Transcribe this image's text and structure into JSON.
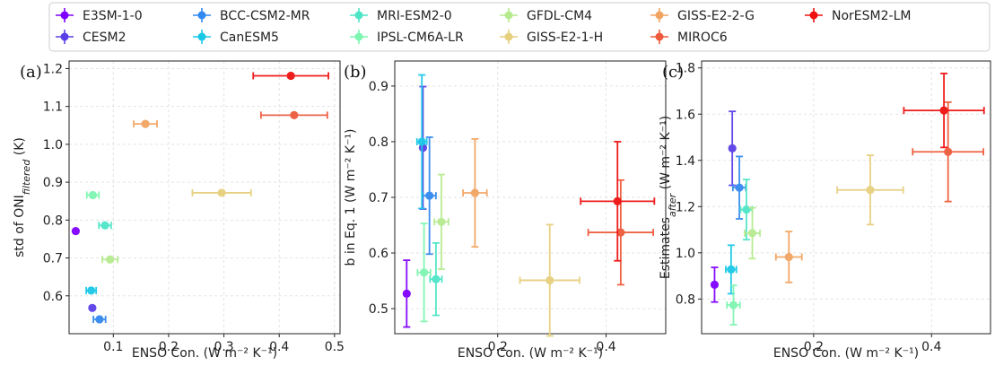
{
  "legend": {
    "entries": [
      {
        "label": "E3SM-1-0",
        "color": "#7f00ff"
      },
      {
        "label": "CESM2",
        "color": "#5a3fe6"
      },
      {
        "label": "BCC-CSM2-MR",
        "color": "#3289f0"
      },
      {
        "label": "CanESM5",
        "color": "#19c8e6"
      },
      {
        "label": "MRI-ESM2-0",
        "color": "#4ee5c7"
      },
      {
        "label": "IPSL-CM6A-LR",
        "color": "#7ef5b1"
      },
      {
        "label": "GFDL-CM4",
        "color": "#b5ea8f"
      },
      {
        "label": "GISS-E2-1-H",
        "color": "#e6cf7d"
      },
      {
        "label": "GISS-E2-2-G",
        "color": "#f2a462"
      },
      {
        "label": "MIROC6",
        "color": "#ee5a3b"
      },
      {
        "label": "NorESM2-LM",
        "color": "#ef1010"
      }
    ]
  },
  "chart_data": [
    {
      "type": "scatter",
      "panel_label": "(a)",
      "xlabel": "ENSO Con. (W m⁻² K⁻¹)",
      "ylabel": "std of ONI_filtered (K)",
      "xlim": [
        0.02,
        0.51
      ],
      "ylim": [
        0.5,
        1.22
      ],
      "xticks": [
        0.1,
        0.2,
        0.3,
        0.4,
        0.5
      ],
      "xtick_labels": [
        "0.1",
        "0.2",
        "0.3",
        "0.4",
        "0.5"
      ],
      "yticks": [
        0.6,
        0.7,
        0.8,
        0.9,
        1.0,
        1.1,
        1.2
      ],
      "ytick_labels": [
        "0.6",
        "0.7",
        "0.8",
        "0.9",
        "1.0",
        "1.1",
        "1.2"
      ],
      "grid": true,
      "points": [
        {
          "model": "E3SM-1-0",
          "x": 0.032,
          "y": 0.771,
          "xerr": 0,
          "yerr": 0
        },
        {
          "model": "CESM2",
          "x": 0.062,
          "y": 0.568,
          "xerr": 0,
          "yerr": 0
        },
        {
          "model": "BCC-CSM2-MR",
          "x": 0.075,
          "y": 0.538,
          "xerr": 0.011,
          "yerr": 0
        },
        {
          "model": "CanESM5",
          "x": 0.06,
          "y": 0.614,
          "xerr": 0.009,
          "yerr": 0
        },
        {
          "model": "MRI-ESM2-0",
          "x": 0.085,
          "y": 0.786,
          "xerr": 0.011,
          "yerr": 0
        },
        {
          "model": "IPSL-CM6A-LR",
          "x": 0.063,
          "y": 0.866,
          "xerr": 0.011,
          "yerr": 0
        },
        {
          "model": "GFDL-CM4",
          "x": 0.094,
          "y": 0.696,
          "xerr": 0.014,
          "yerr": 0
        },
        {
          "model": "GISS-E2-1-H",
          "x": 0.296,
          "y": 0.872,
          "xerr": 0.053,
          "yerr": 0
        },
        {
          "model": "GISS-E2-2-G",
          "x": 0.158,
          "y": 1.054,
          "xerr": 0.021,
          "yerr": 0
        },
        {
          "model": "MIROC6",
          "x": 0.427,
          "y": 1.077,
          "xerr": 0.06,
          "yerr": 0
        },
        {
          "model": "NorESM2-LM",
          "x": 0.421,
          "y": 1.181,
          "xerr": 0.068,
          "yerr": 0
        }
      ]
    },
    {
      "type": "scatter",
      "panel_label": "(b)",
      "xlabel": "ENSO Con. (W m⁻² K⁻¹)",
      "ylabel": "b in Eq. 1 (W m⁻² K⁻¹)",
      "xlim": [
        0.01,
        0.51
      ],
      "ylim": [
        0.455,
        0.945
      ],
      "xticks": [
        0.2,
        0.4
      ],
      "xtick_labels": [
        "0.2",
        "0.4"
      ],
      "yticks": [
        0.5,
        0.6,
        0.7,
        0.8,
        0.9
      ],
      "ytick_labels": [
        "0.5",
        "0.6",
        "0.7",
        "0.8",
        "0.9"
      ],
      "grid": true,
      "points": [
        {
          "model": "E3SM-1-0",
          "x": 0.032,
          "y": 0.527,
          "xerr": 0,
          "yerr": 0.06
        },
        {
          "model": "CESM2",
          "x": 0.062,
          "y": 0.789,
          "xerr": 0,
          "yerr": 0.11
        },
        {
          "model": "BCC-CSM2-MR",
          "x": 0.074,
          "y": 0.703,
          "xerr": 0.012,
          "yerr": 0.105
        },
        {
          "model": "CanESM5",
          "x": 0.06,
          "y": 0.8,
          "xerr": 0.009,
          "yerr": 0.12
        },
        {
          "model": "MRI-ESM2-0",
          "x": 0.086,
          "y": 0.553,
          "xerr": 0.011,
          "yerr": 0.065
        },
        {
          "model": "IPSL-CM6A-LR",
          "x": 0.064,
          "y": 0.565,
          "xerr": 0.012,
          "yerr": 0.088
        },
        {
          "model": "GFDL-CM4",
          "x": 0.096,
          "y": 0.656,
          "xerr": 0.013,
          "yerr": 0.085
        },
        {
          "model": "GISS-E2-1-H",
          "x": 0.296,
          "y": 0.551,
          "xerr": 0.055,
          "yerr": 0.1
        },
        {
          "model": "GISS-E2-2-G",
          "x": 0.158,
          "y": 0.708,
          "xerr": 0.022,
          "yerr": 0.097
        },
        {
          "model": "MIROC6",
          "x": 0.427,
          "y": 0.637,
          "xerr": 0.06,
          "yerr": 0.094
        },
        {
          "model": "NorESM2-LM",
          "x": 0.421,
          "y": 0.693,
          "xerr": 0.068,
          "yerr": 0.107
        }
      ]
    },
    {
      "type": "scatter",
      "panel_label": "(c)",
      "xlabel": "ENSO Con. (W m⁻² K⁻¹)",
      "ylabel": "Estimates_after (W m⁻² K⁻¹)",
      "xlim": [
        0.01,
        0.5
      ],
      "ylim": [
        0.65,
        1.83
      ],
      "xticks": [
        0.2,
        0.4
      ],
      "xtick_labels": [
        "0.2",
        "0.4"
      ],
      "yticks": [
        0.8,
        1.0,
        1.2,
        1.4,
        1.6,
        1.8
      ],
      "ytick_labels": [
        "0.8",
        "1.0",
        "1.2",
        "1.4",
        "1.6",
        "1.8"
      ],
      "grid": true,
      "points": [
        {
          "model": "E3SM-1-0",
          "x": 0.032,
          "y": 0.862,
          "xerr": 0,
          "yerr": 0.075
        },
        {
          "model": "CESM2",
          "x": 0.062,
          "y": 1.452,
          "xerr": 0,
          "yerr": 0.16
        },
        {
          "model": "BCC-CSM2-MR",
          "x": 0.074,
          "y": 1.282,
          "xerr": 0.011,
          "yerr": 0.135
        },
        {
          "model": "CanESM5",
          "x": 0.06,
          "y": 0.928,
          "xerr": 0.009,
          "yerr": 0.105
        },
        {
          "model": "MRI-ESM2-0",
          "x": 0.086,
          "y": 1.187,
          "xerr": 0.01,
          "yerr": 0.13
        },
        {
          "model": "IPSL-CM6A-LR",
          "x": 0.064,
          "y": 0.774,
          "xerr": 0.011,
          "yerr": 0.085
        },
        {
          "model": "GFDL-CM4",
          "x": 0.096,
          "y": 1.085,
          "xerr": 0.013,
          "yerr": 0.11
        },
        {
          "model": "GISS-E2-1-H",
          "x": 0.296,
          "y": 1.272,
          "xerr": 0.056,
          "yerr": 0.15
        },
        {
          "model": "GISS-E2-2-G",
          "x": 0.158,
          "y": 0.982,
          "xerr": 0.022,
          "yerr": 0.11
        },
        {
          "model": "MIROC6",
          "x": 0.428,
          "y": 1.437,
          "xerr": 0.06,
          "yerr": 0.215
        },
        {
          "model": "NorESM2-LM",
          "x": 0.421,
          "y": 1.616,
          "xerr": 0.068,
          "yerr": 0.16
        }
      ]
    }
  ]
}
